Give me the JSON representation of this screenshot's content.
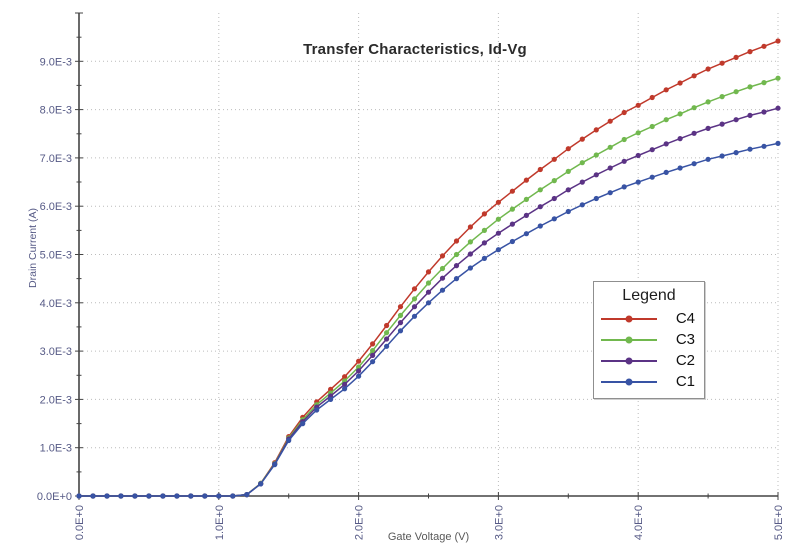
{
  "page": {
    "background": "#ffffff"
  },
  "colors": {
    "axis": "#444444",
    "grid": "#bcbcbc",
    "tick_text": "#565a86",
    "title_text": "#2b2b2b",
    "c4_red": "#c0392b",
    "c3_green": "#71b84e",
    "c2_purple": "#5b3385",
    "c1_blue": "#3853a4"
  },
  "legend": {
    "title": "Legend"
  },
  "chart_data": {
    "type": "line",
    "title": "Transfer Characteristics, Id-Vg",
    "xlabel": "Gate Voltage (V)",
    "ylabel": "Drain Current (A)",
    "xlim": [
      0,
      5
    ],
    "ylim": [
      0,
      0.01
    ],
    "grid": "dotted",
    "legend_position": "right-middle",
    "x_tick_labels": [
      "0.0E+0",
      "1.0E+0",
      "2.0E+0",
      "3.0E+0",
      "4.0E+0",
      "5.0E+0"
    ],
    "y_tick_labels": [
      "0.0E+0",
      "1.0E-3",
      "2.0E-3",
      "3.0E-3",
      "4.0E-3",
      "5.0E-3",
      "6.0E-3",
      "7.0E-3",
      "8.0E-3",
      "9.0E-3"
    ],
    "x_major_step": 1.0,
    "x_minor_step": 0.5,
    "y_major_step": 0.001,
    "y_minor_step": 0.0005,
    "marker": "dot",
    "x": [
      0,
      0.1,
      0.2,
      0.3,
      0.4,
      0.5,
      0.6,
      0.7,
      0.8,
      0.9,
      1.0,
      1.1,
      1.2,
      1.3,
      1.4,
      1.5,
      1.6,
      1.7,
      1.8,
      1.9,
      2.0,
      2.1,
      2.2,
      2.3,
      2.4,
      2.5,
      2.6,
      2.7,
      2.8,
      2.9,
      3.0,
      3.1,
      3.2,
      3.3,
      3.4,
      3.5,
      3.6,
      3.7,
      3.8,
      3.9,
      4.0,
      4.1,
      4.2,
      4.3,
      4.4,
      4.5,
      4.6,
      4.7,
      4.8,
      4.9,
      5.0
    ],
    "series": [
      {
        "name": "C4",
        "color": "#c0392b",
        "values": [
          0,
          0,
          0,
          0,
          0,
          0,
          0,
          0,
          0,
          0,
          0,
          0,
          3e-05,
          0.00026,
          0.00069,
          0.00123,
          0.00163,
          0.00195,
          0.00221,
          0.00247,
          0.00279,
          0.00315,
          0.00353,
          0.00392,
          0.00429,
          0.00464,
          0.00497,
          0.00528,
          0.00557,
          0.00584,
          0.00608,
          0.00631,
          0.00654,
          0.00676,
          0.00697,
          0.00719,
          0.00739,
          0.00758,
          0.00776,
          0.00794,
          0.00809,
          0.00825,
          0.00841,
          0.00855,
          0.0087,
          0.00884,
          0.00896,
          0.00908,
          0.0092,
          0.00931,
          0.00942
        ]
      },
      {
        "name": "C3",
        "color": "#71b84e",
        "values": [
          0,
          0,
          0,
          0,
          0,
          0,
          0,
          0,
          0,
          0,
          0,
          0,
          3e-05,
          0.00026,
          0.00067,
          0.0012,
          0.00158,
          0.00189,
          0.00213,
          0.00238,
          0.00267,
          0.00301,
          0.00338,
          0.00374,
          0.00408,
          0.00441,
          0.00471,
          0.005,
          0.00526,
          0.0055,
          0.00573,
          0.00594,
          0.00614,
          0.00634,
          0.00653,
          0.00672,
          0.0069,
          0.00706,
          0.00722,
          0.00738,
          0.00752,
          0.00765,
          0.00779,
          0.00791,
          0.00804,
          0.00816,
          0.00827,
          0.00837,
          0.00847,
          0.00856,
          0.00865
        ]
      },
      {
        "name": "C2",
        "color": "#5b3385",
        "values": [
          0,
          0,
          0,
          0,
          0,
          0,
          0,
          0,
          0,
          0,
          0,
          0,
          3e-05,
          0.00025,
          0.00066,
          0.00118,
          0.00154,
          0.00184,
          0.00207,
          0.00231,
          0.00259,
          0.00291,
          0.00325,
          0.00359,
          0.00392,
          0.00422,
          0.00451,
          0.00477,
          0.00501,
          0.00524,
          0.00544,
          0.00563,
          0.00581,
          0.00599,
          0.00616,
          0.00634,
          0.0065,
          0.00665,
          0.00679,
          0.00693,
          0.00705,
          0.00717,
          0.00729,
          0.0074,
          0.00751,
          0.00761,
          0.0077,
          0.00779,
          0.00788,
          0.00795,
          0.00803
        ]
      },
      {
        "name": "C1",
        "color": "#3853a4",
        "values": [
          0,
          0,
          0,
          0,
          0,
          0,
          0,
          0,
          0,
          0,
          0,
          0,
          3e-05,
          0.00025,
          0.00065,
          0.00115,
          0.0015,
          0.00178,
          0.002,
          0.00222,
          0.00248,
          0.00278,
          0.0031,
          0.00342,
          0.00372,
          0.004,
          0.00426,
          0.0045,
          0.00472,
          0.00492,
          0.0051,
          0.00527,
          0.00543,
          0.00559,
          0.00574,
          0.00589,
          0.00603,
          0.00616,
          0.00628,
          0.0064,
          0.0065,
          0.0066,
          0.0067,
          0.00679,
          0.00688,
          0.00697,
          0.00704,
          0.00711,
          0.00718,
          0.00724,
          0.0073
        ]
      }
    ]
  }
}
